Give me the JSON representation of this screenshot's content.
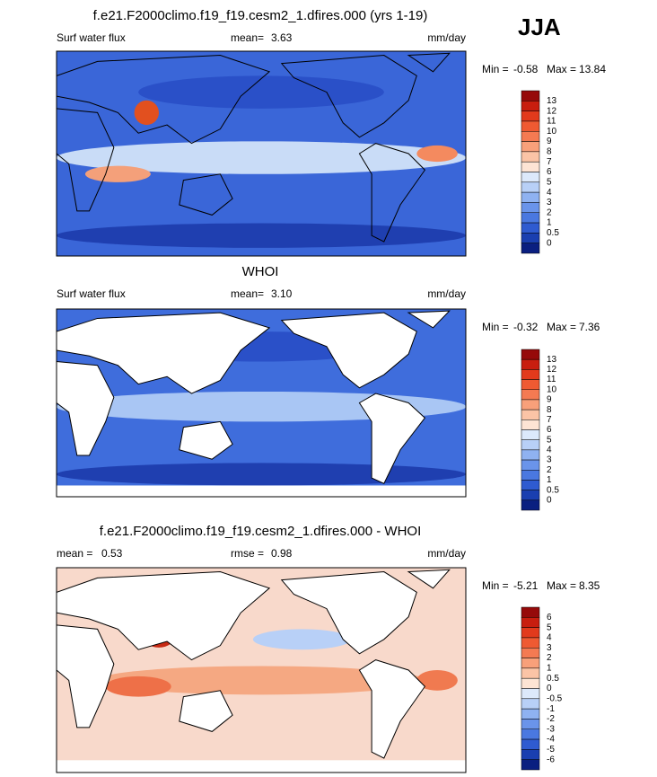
{
  "header": {
    "season": "JJA"
  },
  "panels": [
    {
      "title": "f.e21.F2000climo.f19_f19.cesm2_1.dfires.000 (yrs 1-19)",
      "left_label": "Surf water flux",
      "stat_label": "mean=",
      "stat_value": "3.63",
      "units": "mm/day",
      "min_label": "Min =",
      "min_value": "-0.58",
      "max_label": "Max =",
      "max_value": "13.84",
      "colorbar": {
        "labels": [
          "13",
          "12",
          "11",
          "10",
          "9",
          "8",
          "7",
          "6",
          "5",
          "4",
          "3",
          "2",
          "1",
          "0.5",
          "0"
        ],
        "colors": [
          "#960a0a",
          "#c81e0f",
          "#e23a1c",
          "#ef5a32",
          "#f47a52",
          "#f8a07a",
          "#fbc4a6",
          "#fde4d4",
          "#dce9fb",
          "#b8d0f7",
          "#8fb2f1",
          "#6a94ea",
          "#4a78e0",
          "#2f5bd0",
          "#1a3fb0",
          "#0a1f80"
        ]
      }
    },
    {
      "title": "WHOI",
      "left_label": "Surf water flux",
      "stat_label": "mean=",
      "stat_value": "3.10",
      "units": "mm/day",
      "min_label": "Min =",
      "min_value": "-0.32",
      "max_label": "Max =",
      "max_value": "7.36",
      "colorbar": {
        "labels": [
          "13",
          "12",
          "11",
          "10",
          "9",
          "8",
          "7",
          "6",
          "5",
          "4",
          "3",
          "2",
          "1",
          "0.5",
          "0"
        ],
        "colors": [
          "#960a0a",
          "#c81e0f",
          "#e23a1c",
          "#ef5a32",
          "#f47a52",
          "#f8a07a",
          "#fbc4a6",
          "#fde4d4",
          "#dce9fb",
          "#b8d0f7",
          "#8fb2f1",
          "#6a94ea",
          "#4a78e0",
          "#2f5bd0",
          "#1a3fb0",
          "#0a1f80"
        ]
      }
    },
    {
      "title": "f.e21.F2000climo.f19_f19.cesm2_1.dfires.000 - WHOI",
      "left_label": "mean =",
      "left_value": "0.53",
      "stat_label": "rmse =",
      "stat_value": "0.98",
      "units": "mm/day",
      "min_label": "Min =",
      "min_value": "-5.21",
      "max_label": "Max =",
      "max_value": "8.35",
      "colorbar": {
        "labels": [
          "6",
          "5",
          "4",
          "3",
          "2",
          "1",
          "0.5",
          "0",
          "-0.5",
          "-1",
          "-2",
          "-3",
          "-4",
          "-5",
          "-6"
        ],
        "colors": [
          "#960a0a",
          "#c81e0f",
          "#e23a1c",
          "#ef5a32",
          "#f47a52",
          "#f8a07a",
          "#fbc4a6",
          "#fde4d4",
          "#dce9fb",
          "#b8d0f7",
          "#8fb2f1",
          "#6a94ea",
          "#4a78e0",
          "#2f5bd0",
          "#1a3fb0",
          "#0a1f80"
        ]
      }
    }
  ]
}
